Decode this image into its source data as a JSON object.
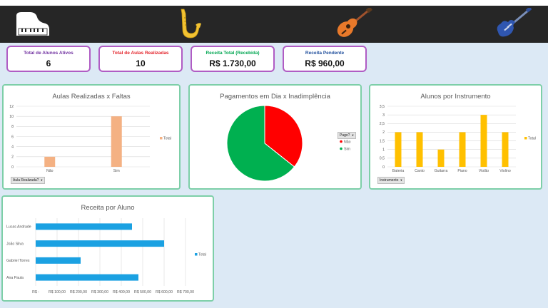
{
  "header": {
    "icons": [
      "piano-icon",
      "saxophone-icon",
      "acoustic-guitar-icon",
      "electric-guitar-icon"
    ]
  },
  "kpis": [
    {
      "label": "Total de Alunos Ativos",
      "value": "6",
      "color": "#7030a0"
    },
    {
      "label": "Total de Aulas Realizadas",
      "value": "10",
      "color": "#e3242b"
    },
    {
      "label": "Receita Total (Recebida)",
      "value": "R$ 1.730,00",
      "color": "#00a651"
    },
    {
      "label": "Receita Pendente",
      "value": "R$ 960,00",
      "color": "#1f4e9c"
    }
  ],
  "charts": {
    "aulas": {
      "title": "Aulas Realizadas x Faltas",
      "filter_label": "Aula Realizada?",
      "legend": "Total",
      "color": "#f4b183"
    },
    "pagamentos": {
      "title": "Pagamentos em Dia x Inadimplência",
      "filter_label": "Pago?",
      "legend": [
        "Não",
        "Sim"
      ],
      "colors": [
        "#ff0000",
        "#00b050"
      ]
    },
    "instrumentos": {
      "title": "Alunos por Instrumento",
      "filter_label": "Instrumento",
      "legend": "Total",
      "color": "#ffc000"
    },
    "receita": {
      "title": "Receita por Aluno",
      "legend": "Total",
      "color": "#1ba1e2"
    }
  },
  "chart_data": [
    {
      "type": "bar",
      "title": "Aulas Realizadas x Faltas",
      "categories": [
        "Não",
        "Sim"
      ],
      "series": [
        {
          "name": "Total",
          "values": [
            2,
            10
          ]
        }
      ],
      "ylim": [
        0,
        12
      ],
      "yticks": [
        "0",
        "2",
        "4",
        "6",
        "8",
        "10",
        "12"
      ],
      "grid": true,
      "legend": "right"
    },
    {
      "type": "pie",
      "title": "Pagamentos em Dia x Inadimplência",
      "categories": [
        "Não",
        "Sim"
      ],
      "values": [
        960,
        1730
      ],
      "legend": "right"
    },
    {
      "type": "bar",
      "title": "Alunos por Instrumento",
      "categories": [
        "Bateria",
        "Canto",
        "Guitarra",
        "Piano",
        "Violão",
        "Violino"
      ],
      "series": [
        {
          "name": "Total",
          "values": [
            2,
            2,
            1,
            2,
            3,
            2
          ]
        }
      ],
      "ylim": [
        0,
        3.5
      ],
      "yticks": [
        "0",
        "0,5",
        "1",
        "1,5",
        "2",
        "2,5",
        "3",
        "3,5"
      ],
      "grid": true,
      "legend": "right"
    },
    {
      "type": "bar",
      "orientation": "horizontal",
      "title": "Receita por Aluno",
      "categories": [
        "Lucas Andrade",
        "João Silva",
        "Gabriel Torres",
        "Ana Paula"
      ],
      "series": [
        {
          "name": "Total",
          "values": [
            450,
            600,
            210,
            480
          ]
        }
      ],
      "xlim": [
        0,
        700
      ],
      "xticks": [
        "R$ -",
        "R$ 100,00",
        "R$ 200,00",
        "R$ 300,00",
        "R$ 400,00",
        "R$ 500,00",
        "R$ 600,00",
        "R$ 700,00"
      ],
      "grid": true,
      "legend": "right"
    }
  ]
}
